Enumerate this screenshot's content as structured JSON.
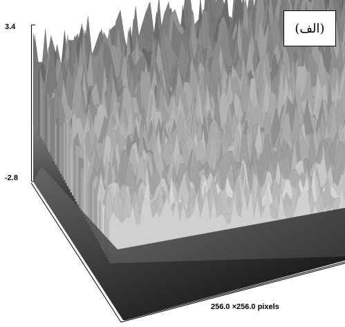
{
  "panel_label": "(الف)",
  "axis": {
    "z_max_label": "3.4",
    "z_min_label": "-2.8",
    "extent_label": "256.0 ×256.0 pixels"
  },
  "surface": {
    "colormap": "grayscale",
    "z_range": [
      -2.8,
      3.4
    ],
    "grid_size": "256.0 ×256.0 pixels"
  }
}
